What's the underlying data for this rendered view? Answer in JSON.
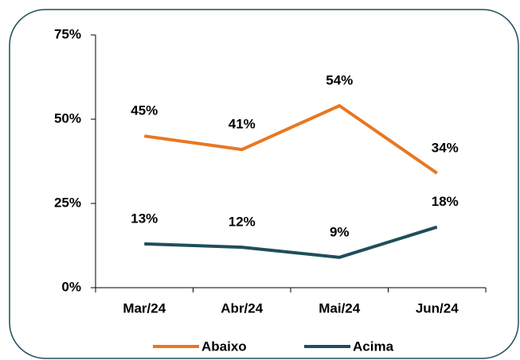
{
  "chart_data": {
    "type": "line",
    "categories": [
      "Mar/24",
      "Abr/24",
      "Mai/24",
      "Jun/24"
    ],
    "series": [
      {
        "name": "Abaixo",
        "color": "#e87722",
        "values": [
          45,
          41,
          54,
          34
        ],
        "value_labels": [
          "45%",
          "41%",
          "54%",
          "34%"
        ]
      },
      {
        "name": "Acima",
        "color": "#1f4e5a",
        "values": [
          13,
          12,
          9,
          18
        ],
        "value_labels": [
          "13%",
          "12%",
          "9%",
          "18%"
        ]
      }
    ],
    "ylim": [
      0,
      75
    ],
    "yticks": [
      {
        "value": 0,
        "label": "0%"
      },
      {
        "value": 25,
        "label": "25%"
      },
      {
        "value": 50,
        "label": "50%"
      },
      {
        "value": 75,
        "label": "75%"
      }
    ],
    "legend": "bottom"
  }
}
